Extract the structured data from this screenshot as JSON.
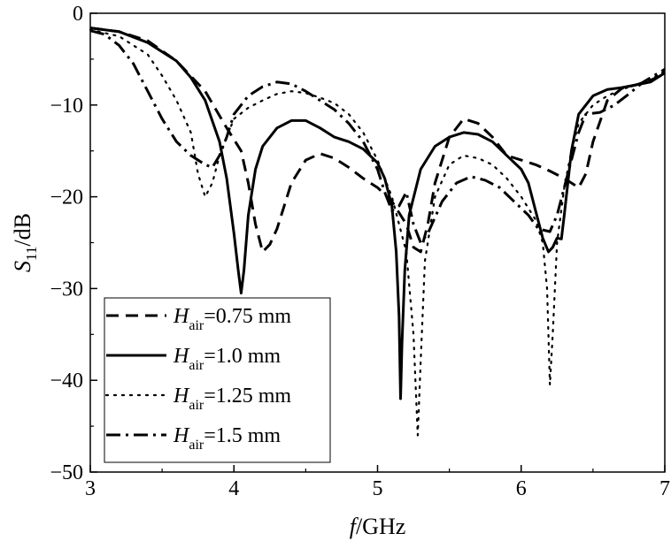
{
  "chart_data": {
    "type": "line",
    "xlabel": {
      "italic": "f",
      "rest": "/GHz"
    },
    "ylabel": {
      "italic": "S",
      "sub": "11",
      "rest": "/dB"
    },
    "xlim": [
      3,
      7
    ],
    "ylim": [
      -50,
      0
    ],
    "xticks": [
      "3",
      "4",
      "5",
      "6",
      "7"
    ],
    "yticks": [
      "0",
      "−10",
      "−20",
      "−30",
      "−40",
      "−50"
    ],
    "grid": false,
    "legend_position": "bottom-left",
    "series": [
      {
        "label_italic": "H",
        "label_sub": "air",
        "label_rest": "=0.75 mm",
        "dash": "dashed",
        "points": [
          [
            3.0,
            -1.6
          ],
          [
            3.2,
            -2.0
          ],
          [
            3.4,
            -3.0
          ],
          [
            3.6,
            -5.2
          ],
          [
            3.8,
            -8.5
          ],
          [
            3.95,
            -12.5
          ],
          [
            4.05,
            -15.0
          ],
          [
            4.1,
            -18.5
          ],
          [
            4.15,
            -23.0
          ],
          [
            4.2,
            -26.0
          ],
          [
            4.25,
            -25.2
          ],
          [
            4.3,
            -23.5
          ],
          [
            4.4,
            -18.5
          ],
          [
            4.5,
            -16.0
          ],
          [
            4.6,
            -15.3
          ],
          [
            4.7,
            -15.8
          ],
          [
            4.8,
            -16.8
          ],
          [
            4.9,
            -18.0
          ],
          [
            5.0,
            -19.0
          ],
          [
            5.1,
            -20.5
          ],
          [
            5.2,
            -23.0
          ],
          [
            5.25,
            -25.5
          ],
          [
            5.3,
            -26.0
          ],
          [
            5.35,
            -23.0
          ],
          [
            5.4,
            -18.5
          ],
          [
            5.5,
            -13.5
          ],
          [
            5.6,
            -11.5
          ],
          [
            5.7,
            -12.0
          ],
          [
            5.8,
            -13.5
          ],
          [
            5.9,
            -15.5
          ],
          [
            6.0,
            -16.0
          ],
          [
            6.1,
            -16.5
          ],
          [
            6.2,
            -17.2
          ],
          [
            6.3,
            -18.0
          ],
          [
            6.4,
            -19.0
          ],
          [
            6.45,
            -17.5
          ],
          [
            6.5,
            -14.0
          ],
          [
            6.6,
            -9.5
          ],
          [
            6.7,
            -8.2
          ],
          [
            6.8,
            -7.8
          ],
          [
            6.9,
            -7.3
          ],
          [
            7.0,
            -6.6
          ]
        ]
      },
      {
        "label_italic": "H",
        "label_sub": "air",
        "label_rest": "=1.0 mm",
        "dash": "solid",
        "points": [
          [
            3.0,
            -1.6
          ],
          [
            3.2,
            -2.0
          ],
          [
            3.4,
            -3.2
          ],
          [
            3.6,
            -5.2
          ],
          [
            3.7,
            -7.0
          ],
          [
            3.8,
            -9.5
          ],
          [
            3.9,
            -14.0
          ],
          [
            3.95,
            -18.0
          ],
          [
            4.0,
            -24.0
          ],
          [
            4.03,
            -28.0
          ],
          [
            4.05,
            -30.5
          ],
          [
            4.07,
            -28.0
          ],
          [
            4.1,
            -22.0
          ],
          [
            4.15,
            -17.0
          ],
          [
            4.2,
            -14.5
          ],
          [
            4.3,
            -12.5
          ],
          [
            4.4,
            -11.7
          ],
          [
            4.5,
            -11.7
          ],
          [
            4.6,
            -12.5
          ],
          [
            4.7,
            -13.5
          ],
          [
            4.8,
            -14.0
          ],
          [
            4.9,
            -14.8
          ],
          [
            5.0,
            -16.3
          ],
          [
            5.05,
            -18.0
          ],
          [
            5.1,
            -21.0
          ],
          [
            5.13,
            -26.0
          ],
          [
            5.15,
            -33.0
          ],
          [
            5.16,
            -42.0
          ],
          [
            5.17,
            -36.0
          ],
          [
            5.19,
            -28.0
          ],
          [
            5.22,
            -22.0
          ],
          [
            5.3,
            -17.0
          ],
          [
            5.4,
            -14.5
          ],
          [
            5.5,
            -13.5
          ],
          [
            5.6,
            -13.0
          ],
          [
            5.7,
            -13.2
          ],
          [
            5.8,
            -14.0
          ],
          [
            5.9,
            -15.5
          ],
          [
            6.0,
            -17.0
          ],
          [
            6.05,
            -18.5
          ],
          [
            6.1,
            -21.5
          ],
          [
            6.15,
            -24.5
          ],
          [
            6.19,
            -26.0
          ],
          [
            6.22,
            -25.5
          ],
          [
            6.25,
            -24.5
          ],
          [
            6.28,
            -24.6
          ],
          [
            6.3,
            -22.0
          ],
          [
            6.35,
            -15.0
          ],
          [
            6.4,
            -11.0
          ],
          [
            6.5,
            -9.0
          ],
          [
            6.6,
            -8.3
          ],
          [
            6.7,
            -8.1
          ],
          [
            6.8,
            -7.8
          ],
          [
            6.9,
            -7.5
          ],
          [
            7.0,
            -6.5
          ]
        ]
      },
      {
        "label_italic": "H",
        "label_sub": "air",
        "label_rest": "=1.25 mm",
        "dash": "dotted",
        "points": [
          [
            3.0,
            -1.8
          ],
          [
            3.2,
            -2.5
          ],
          [
            3.4,
            -4.5
          ],
          [
            3.5,
            -6.8
          ],
          [
            3.6,
            -9.5
          ],
          [
            3.7,
            -13.0
          ],
          [
            3.75,
            -17.5
          ],
          [
            3.8,
            -20.0
          ],
          [
            3.85,
            -18.5
          ],
          [
            3.9,
            -15.5
          ],
          [
            4.0,
            -11.5
          ],
          [
            4.1,
            -10.3
          ],
          [
            4.2,
            -9.5
          ],
          [
            4.3,
            -8.8
          ],
          [
            4.4,
            -8.5
          ],
          [
            4.5,
            -8.7
          ],
          [
            4.6,
            -9.2
          ],
          [
            4.7,
            -9.8
          ],
          [
            4.8,
            -11.0
          ],
          [
            4.9,
            -13.0
          ],
          [
            5.0,
            -16.0
          ],
          [
            5.1,
            -20.0
          ],
          [
            5.2,
            -26.0
          ],
          [
            5.25,
            -35.0
          ],
          [
            5.28,
            -46.0
          ],
          [
            5.3,
            -38.0
          ],
          [
            5.33,
            -27.0
          ],
          [
            5.4,
            -20.0
          ],
          [
            5.5,
            -16.5
          ],
          [
            5.6,
            -15.5
          ],
          [
            5.7,
            -15.8
          ],
          [
            5.8,
            -16.5
          ],
          [
            5.9,
            -18.0
          ],
          [
            6.0,
            -20.0
          ],
          [
            6.1,
            -22.5
          ],
          [
            6.15,
            -25.0
          ],
          [
            6.18,
            -30.0
          ],
          [
            6.2,
            -40.5
          ],
          [
            6.22,
            -35.0
          ],
          [
            6.25,
            -25.0
          ],
          [
            6.3,
            -19.0
          ],
          [
            6.35,
            -15.0
          ],
          [
            6.4,
            -12.0
          ],
          [
            6.5,
            -10.0
          ],
          [
            6.6,
            -9.0
          ],
          [
            6.7,
            -8.3
          ],
          [
            6.8,
            -7.8
          ],
          [
            6.9,
            -7.2
          ],
          [
            7.0,
            -6.3
          ]
        ]
      },
      {
        "label_italic": "H",
        "label_sub": "air",
        "label_rest": "=1.5 mm",
        "dash": "dashdot",
        "points": [
          [
            3.0,
            -1.9
          ],
          [
            3.1,
            -2.3
          ],
          [
            3.2,
            -3.5
          ],
          [
            3.3,
            -5.5
          ],
          [
            3.4,
            -8.5
          ],
          [
            3.5,
            -11.5
          ],
          [
            3.6,
            -14.0
          ],
          [
            3.7,
            -15.5
          ],
          [
            3.8,
            -16.5
          ],
          [
            3.85,
            -16.8
          ],
          [
            3.9,
            -15.5
          ],
          [
            3.95,
            -13.5
          ],
          [
            4.0,
            -11.0
          ],
          [
            4.1,
            -9.0
          ],
          [
            4.2,
            -8.0
          ],
          [
            4.3,
            -7.5
          ],
          [
            4.4,
            -7.7
          ],
          [
            4.5,
            -8.5
          ],
          [
            4.6,
            -9.5
          ],
          [
            4.7,
            -10.5
          ],
          [
            4.8,
            -12.0
          ],
          [
            4.9,
            -14.0
          ],
          [
            5.0,
            -17.0
          ],
          [
            5.05,
            -19.5
          ],
          [
            5.1,
            -21.5
          ],
          [
            5.15,
            -21.0
          ],
          [
            5.2,
            -19.5
          ],
          [
            5.25,
            -23.0
          ],
          [
            5.3,
            -25.0
          ],
          [
            5.35,
            -24.0
          ],
          [
            5.45,
            -20.5
          ],
          [
            5.55,
            -18.5
          ],
          [
            5.65,
            -17.8
          ],
          [
            5.75,
            -18.2
          ],
          [
            5.85,
            -19.0
          ],
          [
            5.95,
            -20.5
          ],
          [
            6.05,
            -22.0
          ],
          [
            6.12,
            -23.5
          ],
          [
            6.2,
            -23.8
          ],
          [
            6.25,
            -22.0
          ],
          [
            6.3,
            -19.0
          ],
          [
            6.35,
            -16.0
          ],
          [
            6.4,
            -13.0
          ],
          [
            6.45,
            -11.0
          ],
          [
            6.55,
            -10.8
          ],
          [
            6.65,
            -10.0
          ],
          [
            6.75,
            -8.8
          ],
          [
            6.85,
            -7.5
          ],
          [
            7.0,
            -6.1
          ]
        ]
      }
    ]
  }
}
